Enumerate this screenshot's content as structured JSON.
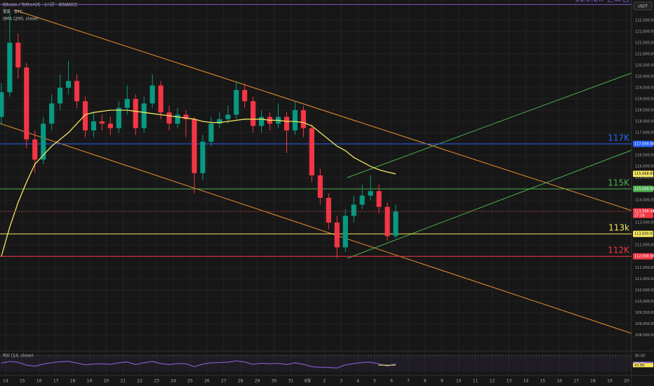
{
  "header": {
    "symbol": "Bitcoin / TetherUS · 1시간 · BINANCE",
    "volume": "볼륨 · BTC",
    "currency": "USDT"
  },
  "chart_data": {
    "type": "candlestick",
    "x": [
      -0.25,
      0.25,
      0.75,
      1.25,
      1.75,
      2.25,
      2.75,
      3.25,
      3.75,
      4.25,
      4.75,
      5.25,
      5.75,
      6.25,
      6.75,
      7.25,
      7.75,
      8.25,
      8.75,
      9.25,
      9.75,
      10.25,
      10.75,
      11.25,
      11.75,
      12.25,
      12.75,
      13.25,
      13.75,
      14.25,
      14.75,
      15.25,
      15.75,
      16.25,
      16.75,
      17.25,
      17.75,
      18.25,
      18.75,
      19.25,
      19.75,
      20.25,
      20.75,
      21.25,
      21.75,
      22.25,
      22.75,
      23.25
    ],
    "open": [
      118200,
      119300,
      121500,
      120400,
      117200,
      116300,
      117900,
      118800,
      119500,
      119800,
      118900,
      117600,
      118000,
      117900,
      117700,
      118600,
      119000,
      117700,
      118800,
      119600,
      118400,
      117900,
      118300,
      118100,
      115700,
      117100,
      117900,
      118100,
      118300,
      119400,
      118900,
      117800,
      118200,
      117900,
      118200,
      117600,
      118500,
      117700,
      115600,
      114600,
      113500,
      112400,
      113800,
      114300,
      114700,
      114900,
      114200,
      112900
    ],
    "high": [
      119700,
      122850,
      121900,
      120600,
      117600,
      118200,
      119200,
      120100,
      120700,
      120100,
      119100,
      118400,
      118300,
      118200,
      118900,
      119600,
      119200,
      119100,
      120100,
      119800,
      118700,
      118600,
      118500,
      118200,
      117400,
      118200,
      118400,
      118700,
      119800,
      119700,
      119100,
      118500,
      118400,
      118800,
      118400,
      118900,
      118700,
      117900,
      115900,
      114800,
      113800,
      114100,
      114700,
      115200,
      115600,
      115200,
      114400,
      114300
    ],
    "low": [
      117900,
      119100,
      119900,
      116800,
      115700,
      116100,
      117600,
      118500,
      119200,
      118600,
      117300,
      117300,
      117600,
      117400,
      117500,
      118300,
      117400,
      117500,
      118600,
      118100,
      117600,
      117700,
      117300,
      114800,
      115400,
      116900,
      117700,
      117900,
      118100,
      118600,
      117500,
      117500,
      117600,
      117700,
      116600,
      117400,
      117300,
      115300,
      114300,
      113200,
      111900,
      112200,
      113500,
      114100,
      114500,
      113900,
      112700,
      112800
    ],
    "close": [
      119300,
      121500,
      120400,
      117200,
      116300,
      117900,
      118800,
      119500,
      119800,
      118900,
      117600,
      118000,
      117900,
      117700,
      118600,
      119000,
      117700,
      118800,
      119600,
      118400,
      117900,
      118300,
      118100,
      115700,
      117100,
      117900,
      118100,
      118300,
      119400,
      118900,
      117800,
      118200,
      117900,
      118200,
      117600,
      118500,
      117700,
      115600,
      114600,
      113500,
      112400,
      113800,
      114300,
      114700,
      114900,
      114200,
      112900,
      113998.44
    ],
    "up_color": "#089981",
    "down_color": "#f23645",
    "sma": {
      "name": "SMA (200, close)",
      "color": "#f5e65f",
      "values": [
        112000,
        113300,
        114400,
        115300,
        116100,
        116500,
        116900,
        117200,
        117500,
        117900,
        118300,
        118400,
        118450,
        118500,
        118500,
        118500,
        118450,
        118400,
        118350,
        118300,
        118250,
        118200,
        118150,
        118100,
        118000,
        117950,
        117950,
        118000,
        118050,
        118100,
        118100,
        118100,
        118050,
        118050,
        118000,
        118000,
        117950,
        117800,
        117500,
        117200,
        116900,
        116700,
        116400,
        116200,
        116000,
        115850,
        115750,
        115668.84
      ],
      "value_label": "115,668.84"
    },
    "current_price": {
      "label": "113,998.44",
      "countdown": "27:18",
      "color": "#f23645"
    },
    "levels": [
      {
        "value": 123200,
        "label": "123.2k 신고점",
        "color": "#7e57c2"
      },
      {
        "value": 117000,
        "label": "117K",
        "tag": "117,000.00",
        "color": "#2962ff"
      },
      {
        "value": 115000,
        "label": "115K",
        "tag": "115,000.00",
        "color": "#4caf50"
      },
      {
        "value": 113000,
        "label": "113k",
        "tag": "113,000.00",
        "color": "#f5e65f"
      },
      {
        "value": 112000,
        "label": "112K",
        "tag": "112,000.00",
        "color": "#f23645"
      }
    ],
    "xlim": [
      -0.33,
      37.3
    ],
    "xticks": [
      {
        "value": 0,
        "label": "14"
      },
      {
        "value": 1,
        "label": "15"
      },
      {
        "value": 2,
        "label": "16"
      },
      {
        "value": 3,
        "label": "17"
      },
      {
        "value": 4,
        "label": "18"
      },
      {
        "value": 5,
        "label": "19"
      },
      {
        "value": 6,
        "label": "20"
      },
      {
        "value": 7,
        "label": "21"
      },
      {
        "value": 8,
        "label": "22"
      },
      {
        "value": 9,
        "label": "23"
      },
      {
        "value": 10,
        "label": "24"
      },
      {
        "value": 11,
        "label": "25"
      },
      {
        "value": 12,
        "label": "26"
      },
      {
        "value": 13,
        "label": "27"
      },
      {
        "value": 14,
        "label": "28"
      },
      {
        "value": 15,
        "label": "29"
      },
      {
        "value": 16,
        "label": "30"
      },
      {
        "value": 17,
        "label": "31"
      },
      {
        "value": 18,
        "label": "8월"
      },
      {
        "value": 19,
        "label": "2"
      },
      {
        "value": 20,
        "label": "3"
      },
      {
        "value": 21,
        "label": "4"
      },
      {
        "value": 22,
        "label": "5"
      },
      {
        "value": 23,
        "label": "6"
      },
      {
        "value": 24,
        "label": "7"
      },
      {
        "value": 25,
        "label": "8"
      },
      {
        "value": 26,
        "label": "9"
      },
      {
        "value": 27,
        "label": "10"
      },
      {
        "value": 28,
        "label": "11"
      },
      {
        "value": 29,
        "label": "12"
      },
      {
        "value": 30,
        "label": "13"
      },
      {
        "value": 31,
        "label": "14"
      },
      {
        "value": 32,
        "label": "15"
      },
      {
        "value": 33,
        "label": "16"
      },
      {
        "value": 34,
        "label": "17"
      },
      {
        "value": 35,
        "label": "18"
      },
      {
        "value": 36,
        "label": "19"
      },
      {
        "value": 37,
        "label": "20"
      }
    ],
    "ylim": [
      107950,
      123400
    ],
    "yticks": [
      {
        "value": 108500,
        "label": "108,500.00"
      },
      {
        "value": 109000,
        "label": "109,000.00"
      },
      {
        "value": 109500,
        "label": "109,500.00"
      },
      {
        "value": 110000,
        "label": "110,000.00"
      },
      {
        "value": 110500,
        "label": "110,500.00"
      },
      {
        "value": 111000,
        "label": "111,000.00"
      },
      {
        "value": 111500,
        "label": "111,500.00"
      },
      {
        "value": 112000,
        "label": "112,000.00"
      },
      {
        "value": 112500,
        "label": "112,500.00"
      },
      {
        "value": 113000,
        "label": "113,000.00"
      },
      {
        "value": 113500,
        "label": "113,500.00"
      },
      {
        "value": 114000,
        "label": "114,000.00"
      },
      {
        "value": 114500,
        "label": "114,500.00"
      },
      {
        "value": 115000,
        "label": "115,000.00"
      },
      {
        "value": 115500,
        "label": "115,500.00"
      },
      {
        "value": 116000,
        "label": "116,000.00"
      },
      {
        "value": 116500,
        "label": "116,500.00"
      },
      {
        "value": 117000,
        "label": "117,000.00"
      },
      {
        "value": 117500,
        "label": "117,500.00"
      },
      {
        "value": 118000,
        "label": "118,000.00"
      },
      {
        "value": 118500,
        "label": "118,500.00"
      },
      {
        "value": 119000,
        "label": "119,000.00"
      },
      {
        "value": 119500,
        "label": "119,500.00"
      },
      {
        "value": 120000,
        "label": "120,000.00"
      },
      {
        "value": 120500,
        "label": "120,500.00"
      },
      {
        "value": 121000,
        "label": "121,000.00"
      },
      {
        "value": 121500,
        "label": "121,500.00"
      },
      {
        "value": 122000,
        "label": "122,000.00"
      },
      {
        "value": 122500,
        "label": "122,500.00"
      }
    ],
    "grid": true,
    "rsi": {
      "name": "RSI (14, close)",
      "color": "#7e57c2",
      "ylim": [
        10,
        90
      ],
      "yticks": [
        {
          "value": 80,
          "label": "80.00"
        }
      ],
      "values": [
        52,
        58,
        55,
        44,
        40,
        48,
        53,
        57,
        58,
        52,
        45,
        48,
        49,
        47,
        53,
        56,
        46,
        53,
        58,
        50,
        46,
        50,
        49,
        38,
        48,
        53,
        54,
        55,
        60,
        56,
        47,
        51,
        49,
        51,
        46,
        53,
        47,
        38,
        36,
        35,
        33,
        45,
        50,
        54,
        55,
        49,
        40,
        49.25
      ],
      "value_label": "49.25",
      "ma": 43.89,
      "ma_label": "43.89"
    }
  }
}
